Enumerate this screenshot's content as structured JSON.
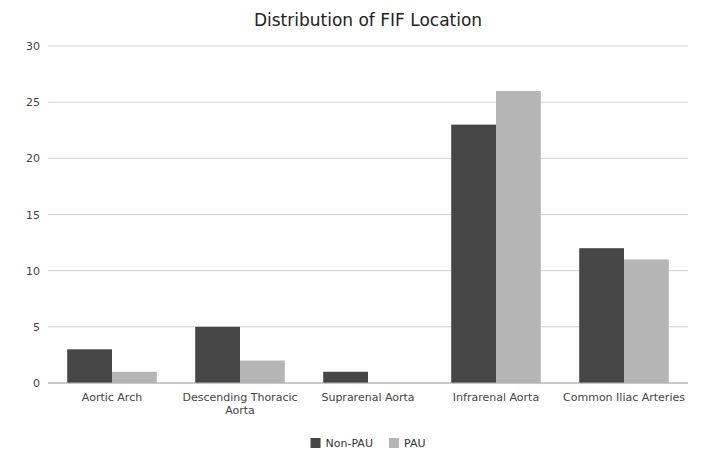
{
  "chart_data": {
    "type": "bar",
    "title": "Distribution of FIF Location",
    "categories": [
      "Aortic Arch",
      "Descending Thoracic\nAorta",
      "Suprarenal Aorta",
      "Infrarenal Aorta",
      "Common Iliac Arteries"
    ],
    "series": [
      {
        "name": "Non-PAU",
        "color": "#464646",
        "values": [
          3,
          5,
          1,
          23,
          12
        ]
      },
      {
        "name": "PAU",
        "color": "#b5b5b5",
        "values": [
          1,
          2,
          0,
          26,
          11
        ]
      }
    ],
    "ylim": [
      0,
      30
    ],
    "yticks": [
      0,
      5,
      10,
      15,
      20,
      25,
      30
    ],
    "grid": true,
    "legend": "bottom"
  }
}
